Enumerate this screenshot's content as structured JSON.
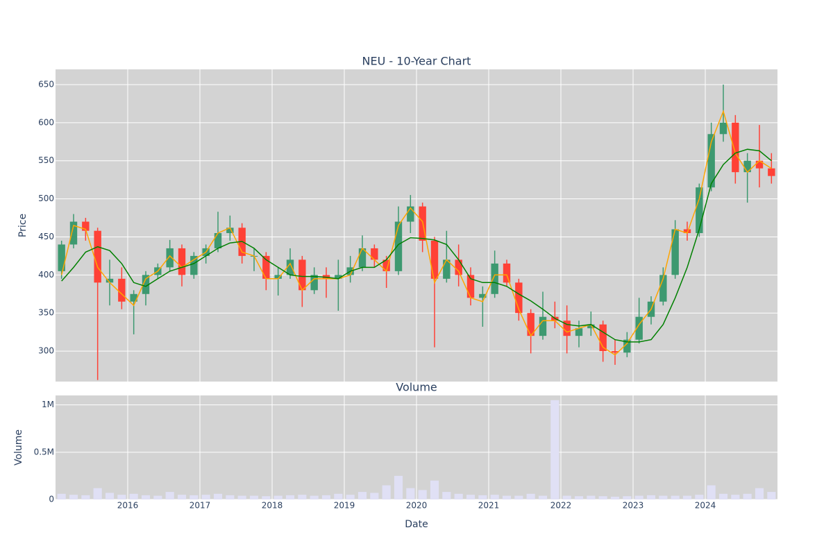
{
  "chart_data": [
    {
      "type": "candlestick",
      "title": "NEU - 10-Year Chart",
      "ylabel": "Price",
      "x": [
        "2015-01",
        "2015-03",
        "2015-05",
        "2015-07",
        "2015-09",
        "2015-11",
        "2016-01",
        "2016-03",
        "2016-05",
        "2016-07",
        "2016-09",
        "2016-11",
        "2017-01",
        "2017-03",
        "2017-05",
        "2017-07",
        "2017-09",
        "2017-11",
        "2018-01",
        "2018-03",
        "2018-05",
        "2018-07",
        "2018-09",
        "2018-11",
        "2019-01",
        "2019-03",
        "2019-05",
        "2019-07",
        "2019-09",
        "2019-11",
        "2020-01",
        "2020-03",
        "2020-05",
        "2020-07",
        "2020-09",
        "2020-11",
        "2021-01",
        "2021-03",
        "2021-05",
        "2021-07",
        "2021-09",
        "2021-11",
        "2022-01",
        "2022-03",
        "2022-05",
        "2022-07",
        "2022-09",
        "2022-11",
        "2023-01",
        "2023-03",
        "2023-05",
        "2023-07",
        "2023-09",
        "2023-11",
        "2024-01",
        "2024-03",
        "2024-05",
        "2024-07",
        "2024-09",
        "2024-11"
      ],
      "open": [
        405,
        440,
        470,
        458,
        390,
        395,
        365,
        375,
        400,
        410,
        435,
        400,
        425,
        435,
        455,
        462,
        425,
        425,
        395,
        400,
        420,
        380,
        400,
        395,
        400,
        410,
        435,
        420,
        405,
        470,
        490,
        445,
        395,
        420,
        400,
        370,
        375,
        415,
        390,
        350,
        320,
        345,
        340,
        320,
        330,
        335,
        300,
        298,
        315,
        345,
        365,
        400,
        460,
        455,
        515,
        585,
        600,
        535,
        550,
        540
      ],
      "high": [
        445,
        480,
        475,
        462,
        420,
        410,
        380,
        405,
        415,
        446,
        440,
        430,
        440,
        483,
        478,
        468,
        435,
        430,
        410,
        435,
        425,
        410,
        410,
        420,
        425,
        452,
        440,
        425,
        490,
        505,
        495,
        450,
        458,
        440,
        410,
        385,
        432,
        420,
        395,
        355,
        378,
        365,
        360,
        340,
        352,
        340,
        315,
        325,
        370,
        372,
        410,
        472,
        470,
        520,
        600,
        650,
        610,
        560,
        597,
        560
      ],
      "low": [
        395,
        435,
        445,
        262,
        360,
        355,
        322,
        360,
        395,
        405,
        385,
        395,
        415,
        430,
        445,
        415,
        405,
        380,
        373,
        395,
        358,
        375,
        370,
        353,
        390,
        405,
        410,
        383,
        400,
        455,
        430,
        305,
        390,
        385,
        360,
        332,
        370,
        385,
        340,
        297,
        315,
        330,
        297,
        305,
        320,
        286,
        282,
        292,
        310,
        335,
        360,
        395,
        445,
        450,
        510,
        575,
        520,
        495,
        515,
        520
      ],
      "close": [
        440,
        470,
        458,
        390,
        395,
        365,
        375,
        400,
        410,
        435,
        400,
        425,
        435,
        455,
        462,
        425,
        425,
        395,
        400,
        420,
        380,
        400,
        395,
        400,
        410,
        435,
        420,
        405,
        470,
        490,
        445,
        395,
        420,
        400,
        370,
        375,
        415,
        390,
        350,
        320,
        345,
        340,
        320,
        330,
        335,
        300,
        298,
        315,
        345,
        365,
        400,
        460,
        455,
        515,
        585,
        600,
        535,
        550,
        540,
        530
      ],
      "increasing_color": "#3d9970",
      "decreasing_color": "#ff4136",
      "series": [
        {
          "color": "orange",
          "values": [
            400,
            465,
            460,
            410,
            390,
            375,
            360,
            395,
            405,
            425,
            410,
            420,
            430,
            455,
            462,
            430,
            425,
            395,
            395,
            415,
            380,
            395,
            395,
            395,
            400,
            435,
            420,
            405,
            465,
            488,
            470,
            390,
            420,
            405,
            370,
            365,
            400,
            400,
            355,
            320,
            340,
            340,
            325,
            330,
            335,
            305,
            295,
            310,
            335,
            355,
            395,
            460,
            455,
            500,
            575,
            615,
            560,
            535,
            550,
            540
          ]
        },
        {
          "color": "green",
          "values": [
            392,
            410,
            430,
            437,
            432,
            415,
            390,
            385,
            395,
            405,
            410,
            415,
            425,
            435,
            442,
            444,
            435,
            420,
            410,
            400,
            398,
            398,
            397,
            395,
            405,
            410,
            410,
            420,
            440,
            449,
            448,
            446,
            440,
            420,
            395,
            390,
            390,
            385,
            375,
            366,
            355,
            343,
            335,
            333,
            335,
            325,
            315,
            312,
            312,
            315,
            335,
            370,
            410,
            460,
            520,
            545,
            560,
            565,
            563,
            550
          ]
        }
      ],
      "xlim": [
        "2015-01",
        "2025-01"
      ],
      "ylim": [
        260,
        670
      ],
      "yticks": [
        300,
        350,
        400,
        450,
        500,
        550,
        600,
        650
      ],
      "grid": true
    },
    {
      "type": "bar",
      "title": "Volume",
      "ylabel": "Volume",
      "xlabel": "Date",
      "x": [
        "2015-01",
        "2015-03",
        "2015-05",
        "2015-07",
        "2015-09",
        "2015-11",
        "2016-01",
        "2016-03",
        "2016-05",
        "2016-07",
        "2016-09",
        "2016-11",
        "2017-01",
        "2017-03",
        "2017-05",
        "2017-07",
        "2017-09",
        "2017-11",
        "2018-01",
        "2018-03",
        "2018-05",
        "2018-07",
        "2018-09",
        "2018-11",
        "2019-01",
        "2019-03",
        "2019-05",
        "2019-07",
        "2019-09",
        "2019-11",
        "2020-01",
        "2020-03",
        "2020-05",
        "2020-07",
        "2020-09",
        "2020-11",
        "2021-01",
        "2021-03",
        "2021-05",
        "2021-07",
        "2021-09",
        "2021-11",
        "2022-01",
        "2022-03",
        "2022-05",
        "2022-07",
        "2022-09",
        "2022-11",
        "2023-01",
        "2023-03",
        "2023-05",
        "2023-07",
        "2023-09",
        "2023-11",
        "2024-01",
        "2024-03",
        "2024-05",
        "2024-07",
        "2024-09",
        "2024-11"
      ],
      "values": [
        60000,
        50000,
        45000,
        120000,
        70000,
        50000,
        60000,
        45000,
        40000,
        80000,
        50000,
        45000,
        50000,
        60000,
        45000,
        40000,
        40000,
        35000,
        40000,
        45000,
        50000,
        40000,
        45000,
        60000,
        50000,
        80000,
        70000,
        150000,
        250000,
        120000,
        100000,
        200000,
        80000,
        60000,
        50000,
        45000,
        50000,
        40000,
        40000,
        60000,
        40000,
        1050000,
        40000,
        35000,
        40000,
        35000,
        30000,
        35000,
        40000,
        45000,
        40000,
        40000,
        40000,
        50000,
        150000,
        60000,
        50000,
        60000,
        120000,
        80000
      ],
      "color": "#e0e0f5",
      "xlim": [
        "2015-01",
        "2025-01"
      ],
      "xticks": [
        "2016",
        "2017",
        "2018",
        "2019",
        "2020",
        "2021",
        "2022",
        "2023",
        "2024"
      ],
      "ylim": [
        0,
        1100000
      ],
      "yticks": [
        0,
        {
          "value": 500000,
          "label": "0.5M"
        },
        {
          "value": 1000000,
          "label": "1M"
        }
      ],
      "grid": true
    }
  ]
}
